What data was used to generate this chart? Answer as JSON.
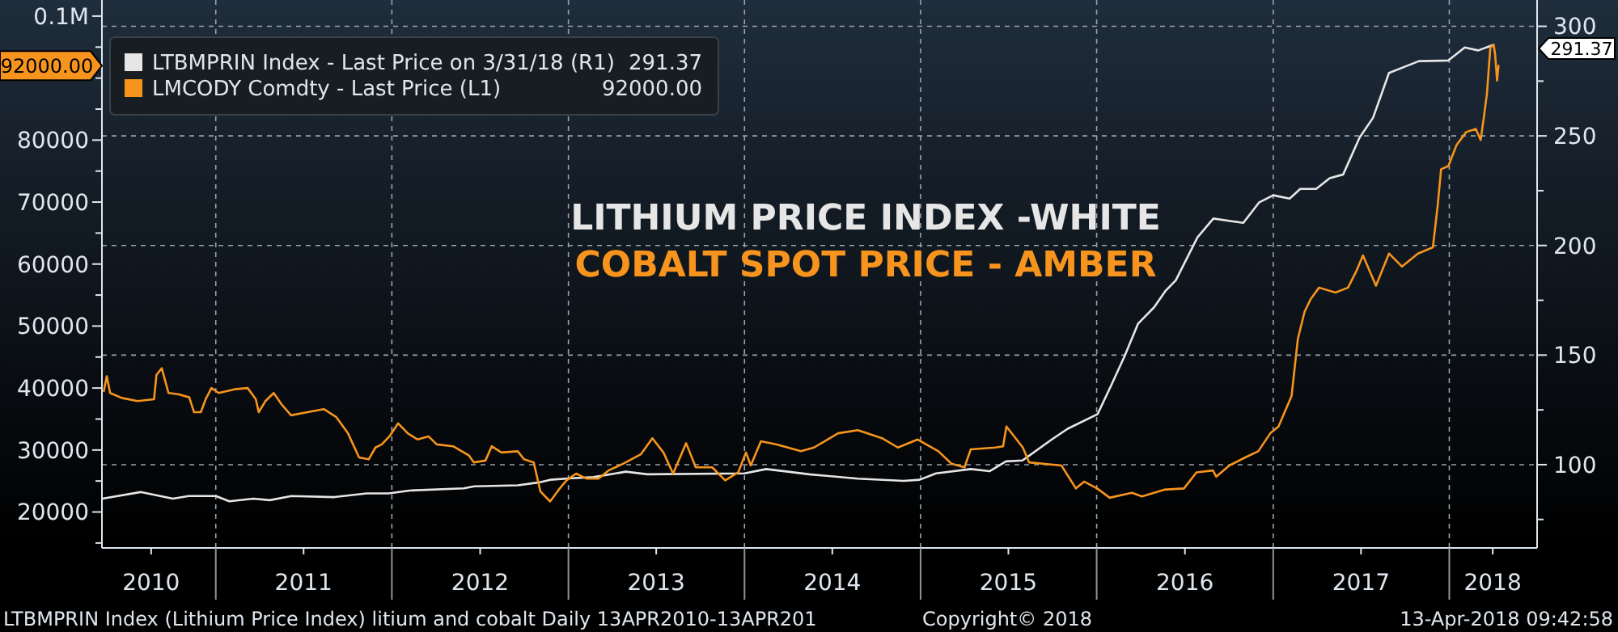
{
  "chart_data": {
    "type": "line",
    "xlim": [
      "2010-05-10",
      "2018-07-02"
    ],
    "ylim": [
      14200,
      102600
    ],
    "y2lim": [
      62,
      312
    ],
    "xticks": [
      {
        "value": "2010-08-20",
        "label": "2010"
      },
      {
        "value": "2011-01-01",
        "label": null
      },
      {
        "value": "2011-07-02",
        "label": "2011"
      },
      {
        "value": "2012-01-01",
        "label": null
      },
      {
        "value": "2012-07-02",
        "label": "2012"
      },
      {
        "value": "2013-01-01",
        "label": null
      },
      {
        "value": "2013-07-02",
        "label": "2013"
      },
      {
        "value": "2014-01-01",
        "label": null
      },
      {
        "value": "2014-07-02",
        "label": "2014"
      },
      {
        "value": "2015-01-01",
        "label": null
      },
      {
        "value": "2015-07-02",
        "label": "2015"
      },
      {
        "value": "2016-01-01",
        "label": null
      },
      {
        "value": "2016-07-02",
        "label": "2016"
      },
      {
        "value": "2017-01-01",
        "label": null
      },
      {
        "value": "2017-07-02",
        "label": "2017"
      },
      {
        "value": "2018-01-01",
        "label": null
      },
      {
        "value": "2018-04-01",
        "label": "2018"
      }
    ],
    "yticks": [
      {
        "value": 15000,
        "label": null
      },
      20000,
      {
        "value": 25000,
        "label": null
      },
      30000,
      {
        "value": 35000,
        "label": null
      },
      40000,
      {
        "value": 45000,
        "label": null
      },
      50000,
      {
        "value": 55000,
        "label": null
      },
      60000,
      {
        "value": 65000,
        "label": null
      },
      70000,
      {
        "value": 75000,
        "label": null
      },
      80000,
      {
        "value": 85000,
        "label": null
      },
      {
        "value": 90000,
        "label": null
      },
      {
        "value": 95000,
        "label": null
      },
      {
        "value": 100000,
        "label": "0.1M"
      }
    ],
    "y2ticks": [
      {
        "value": 75,
        "label": null
      },
      100,
      {
        "value": 125,
        "label": null
      },
      150,
      {
        "value": 175,
        "label": null
      },
      200,
      {
        "value": 225,
        "label": null
      },
      250,
      {
        "value": 275,
        "label": null
      },
      300
    ],
    "grid": true,
    "legend": "top left",
    "annotations": [
      "LITHIUM PRICE INDEX -WHITE",
      "COBALT SPOT PRICE - AMBER",
      "LTBMPRIN Index (Lithium Price Index) litium and cobalt  Daily 13APR2010-13APR201",
      "Copyright© 2018",
      "13-Apr-2018 09:42:58",
      "291.37",
      "92000.00",
      "291.37",
      "92000.00"
    ],
    "series": [
      {
        "name": "LTBMPRIN Index - Last Price on 3/31/18 (R1)",
        "color": "#e6e6e6",
        "axis": "y2",
        "x": [
          "2010-05-11",
          "2010-07-29",
          "2010-10-04",
          "2010-11-06",
          "2011-01-01",
          "2011-01-29",
          "2011-03-20",
          "2011-04-23",
          "2011-06-07",
          "2011-09-04",
          "2011-11-10",
          "2011-12-25",
          "2012-02-07",
          "2012-05-29",
          "2012-06-20",
          "2012-09-18",
          "2012-11-01",
          "2012-11-24",
          "2013-01-08",
          "2013-02-22",
          "2013-04-30",
          "2013-06-14",
          "2014-01-01",
          "2014-02-15",
          "2014-04-01",
          "2014-05-15",
          "2014-08-24",
          "2014-11-27",
          "2014-12-30",
          "2015-02-02",
          "2015-04-15",
          "2015-05-24",
          "2015-06-27",
          "2015-07-31",
          "2015-09-30",
          "2015-11-02",
          "2016-01-03",
          "2016-01-31",
          "2016-02-28",
          "2016-03-27",
          "2016-04-29",
          "2016-05-22",
          "2016-06-13",
          "2016-07-28",
          "2016-08-30",
          "2016-10-31",
          "2016-12-03",
          "2017-01-01",
          "2017-02-04",
          "2017-02-26",
          "2017-03-31",
          "2017-04-28",
          "2017-05-26",
          "2017-06-29",
          "2017-07-27",
          "2017-08-29",
          "2017-10-30",
          "2017-12-30",
          "2018-02-02",
          "2018-03-02",
          "2018-03-31"
        ],
        "values": [
          84.5,
          87.5,
          84.5,
          85.7,
          85.7,
          83.3,
          84.5,
          83.8,
          85.7,
          85.2,
          86.9,
          86.9,
          88.2,
          89.2,
          90.1,
          90.6,
          91.9,
          93.1,
          93.8,
          94.3,
          96.8,
          95.6,
          96.0,
          98.0,
          96.8,
          95.6,
          93.6,
          92.6,
          93.1,
          96.0,
          98.0,
          97.0,
          101.5,
          101.9,
          111.5,
          116.4,
          123.1,
          136.1,
          149.6,
          164.4,
          171.8,
          179.1,
          184.1,
          203.7,
          212.3,
          210.3,
          219.7,
          222.9,
          221.4,
          225.8,
          225.8,
          230.7,
          232.4,
          249.2,
          258.3,
          278.7,
          284.1,
          284.4,
          290.3,
          289.0,
          291.37
        ]
      },
      {
        "name": "LMCODY Comdty - Last Price (L1)",
        "color": "#f7941d",
        "x": [
          "2010-05-14",
          "2010-05-20",
          "2010-05-27",
          "2010-06-20",
          "2010-07-23",
          "2010-08-26",
          "2010-08-31",
          "2010-09-11",
          "2010-09-25",
          "2010-10-15",
          "2010-11-07",
          "2010-11-17",
          "2010-12-01",
          "2010-12-11",
          "2010-12-23",
          "2011-01-07",
          "2011-02-09",
          "2011-03-08",
          "2011-03-25",
          "2011-03-31",
          "2011-04-14",
          "2011-05-01",
          "2011-05-17",
          "2011-06-06",
          "2011-07-10",
          "2011-08-13",
          "2011-09-08",
          "2011-10-02",
          "2011-10-25",
          "2011-11-14",
          "2011-11-28",
          "2011-12-11",
          "2011-12-27",
          "2012-01-14",
          "2012-02-03",
          "2012-02-23",
          "2012-03-17",
          "2012-04-03",
          "2012-05-07",
          "2012-06-09",
          "2012-06-19",
          "2012-07-13",
          "2012-07-26",
          "2012-08-15",
          "2012-09-18",
          "2012-10-01",
          "2012-10-21",
          "2012-11-04",
          "2012-11-24",
          "2012-12-12",
          "2012-12-28",
          "2013-01-17",
          "2013-02-07",
          "2013-03-05",
          "2013-03-25",
          "2013-04-25",
          "2013-05-31",
          "2013-06-24",
          "2013-07-17",
          "2013-08-06",
          "2013-09-02",
          "2013-09-22",
          "2013-10-26",
          "2013-11-22",
          "2013-12-19",
          "2014-01-04",
          "2014-01-14",
          "2014-02-04",
          "2014-03-09",
          "2014-04-28",
          "2014-05-25",
          "2014-07-14",
          "2014-08-24",
          "2014-10-13",
          "2014-11-15",
          "2014-12-26",
          "2015-02-07",
          "2015-03-06",
          "2015-04-02",
          "2015-04-15",
          "2015-06-05",
          "2015-06-21",
          "2015-06-28",
          "2015-08-01",
          "2015-08-14",
          "2015-10-20",
          "2015-11-19",
          "2015-12-06",
          "2016-01-02",
          "2016-01-28",
          "2016-03-14",
          "2016-04-04",
          "2016-05-20",
          "2016-06-30",
          "2016-07-26",
          "2016-08-29",
          "2016-09-05",
          "2016-10-02",
          "2016-11-04",
          "2016-12-01",
          "2016-12-26",
          "2017-01-12",
          "2017-01-29",
          "2017-02-08",
          "2017-02-21",
          "2017-03-07",
          "2017-03-20",
          "2017-04-06",
          "2017-05-10",
          "2017-06-05",
          "2017-06-22",
          "2017-07-06",
          "2017-08-02",
          "2017-08-29",
          "2017-09-25",
          "2017-10-28",
          "2017-11-28",
          "2017-12-08",
          "2017-12-15",
          "2017-12-30",
          "2018-01-16",
          "2018-02-05",
          "2018-02-25",
          "2018-03-07",
          "2018-03-14",
          "2018-03-20",
          "2018-03-27",
          "2018-04-03",
          "2018-04-06",
          "2018-04-10",
          "2018-04-13"
        ],
        "values": [
          39500,
          41900,
          39200,
          38400,
          37900,
          38200,
          42100,
          43200,
          39200,
          39000,
          38500,
          36100,
          36100,
          38200,
          40000,
          39200,
          39800,
          40000,
          38200,
          36100,
          37900,
          39200,
          37400,
          35600,
          36100,
          36600,
          35300,
          32700,
          28800,
          28500,
          30400,
          30900,
          32200,
          34300,
          32700,
          31700,
          32200,
          30900,
          30600,
          29100,
          28000,
          28300,
          30600,
          29600,
          29800,
          28500,
          28000,
          23300,
          21700,
          23600,
          25100,
          26200,
          25400,
          25400,
          26700,
          27800,
          29300,
          31900,
          29600,
          26200,
          31100,
          27200,
          27200,
          25100,
          26400,
          29600,
          27500,
          31400,
          30900,
          29800,
          30400,
          32700,
          33200,
          31900,
          30400,
          31700,
          29800,
          27800,
          27200,
          30100,
          30400,
          30600,
          33800,
          30400,
          28000,
          27500,
          23800,
          24900,
          23800,
          22300,
          23100,
          22500,
          23600,
          23800,
          26400,
          26700,
          25700,
          27500,
          28800,
          29800,
          32700,
          33800,
          36900,
          38700,
          47900,
          52300,
          54400,
          56200,
          55400,
          56200,
          58800,
          61400,
          56500,
          61700,
          59600,
          61700,
          62700,
          69500,
          75300,
          75800,
          79200,
          81300,
          81800,
          80000,
          83900,
          87500,
          94900,
          95400,
          93800,
          89600,
          92000
        ]
      }
    ]
  }
}
